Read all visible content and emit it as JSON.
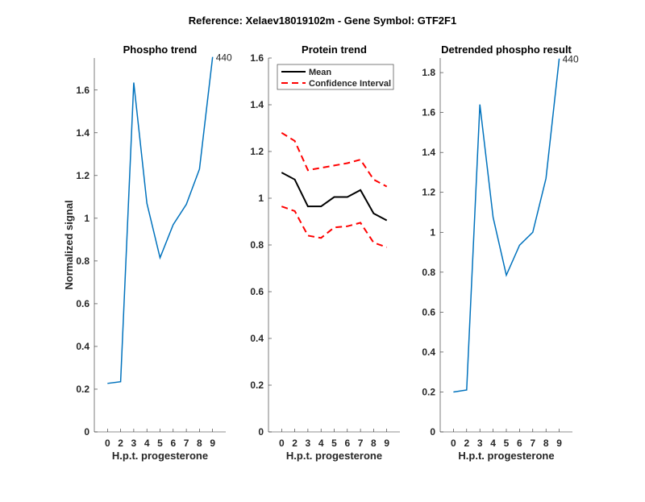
{
  "chart_data": {
    "title": "Reference:  Xelaev18019102m - Gene Symbol:  GTF2F1",
    "panels": [
      {
        "type": "line",
        "title": "Phospho trend",
        "xlabel": "H.p.t. progesterone",
        "ylabel": "Normalized signal",
        "categories": [
          "0",
          "2",
          "3",
          "4",
          "5",
          "6",
          "7",
          "8",
          "9"
        ],
        "ylim": [
          0,
          1.75
        ],
        "yticks": [
          "0",
          "0.2",
          "0.4",
          "0.6",
          "0.8",
          "1",
          "1.2",
          "1.4",
          "1.6"
        ],
        "series": [
          {
            "name": "Phospho",
            "color": "#0072BD",
            "values": [
              0.227,
              0.235,
              1.635,
              1.07,
              0.815,
              0.97,
              1.065,
              1.23,
              1.755
            ]
          }
        ],
        "annotation": "440"
      },
      {
        "type": "line",
        "title": "Protein trend",
        "xlabel": "H.p.t. progesterone",
        "ylabel": "",
        "categories": [
          "0",
          "2",
          "3",
          "4",
          "5",
          "6",
          "7",
          "8",
          "9"
        ],
        "ylim": [
          0,
          1.6
        ],
        "yticks": [
          "0",
          "0.2",
          "0.4",
          "0.6",
          "0.8",
          "1",
          "1.2",
          "1.4",
          "1.6"
        ],
        "series": [
          {
            "name": "Mean",
            "color": "#000000",
            "values": [
              1.11,
              1.08,
              0.965,
              0.965,
              1.005,
              1.005,
              1.035,
              0.935,
              0.905
            ]
          },
          {
            "name": "Confidence Interval",
            "color": "#FF0000",
            "dashed": true,
            "values": [
              1.28,
              1.245,
              1.12,
              1.13,
              1.14,
              1.15,
              1.165,
              1.08,
              1.05
            ]
          },
          {
            "name": "Confidence Interval lower",
            "color": "#FF0000",
            "dashed": true,
            "values": [
              0.965,
              0.945,
              0.84,
              0.83,
              0.875,
              0.88,
              0.895,
              0.81,
              0.79
            ]
          }
        ],
        "legend": [
          "Mean",
          "Confidence Interval"
        ],
        "legend_position": "top-right"
      },
      {
        "type": "line",
        "title": "Detrended phospho result",
        "xlabel": "H.p.t. progesterone",
        "ylabel": "",
        "categories": [
          "0",
          "2",
          "3",
          "4",
          "5",
          "6",
          "7",
          "8",
          "9"
        ],
        "ylim": [
          0,
          1.873
        ],
        "yticks": [
          "0",
          "0.2",
          "0.4",
          "0.6",
          "0.8",
          "1",
          "1.2",
          "1.4",
          "1.6",
          "1.8"
        ],
        "series": [
          {
            "name": "Detrended",
            "color": "#0072BD",
            "values": [
              0.2,
              0.21,
              1.64,
              1.075,
              0.785,
              0.935,
              1.0,
              1.27,
              1.87
            ]
          }
        ],
        "annotation": "440"
      }
    ]
  }
}
